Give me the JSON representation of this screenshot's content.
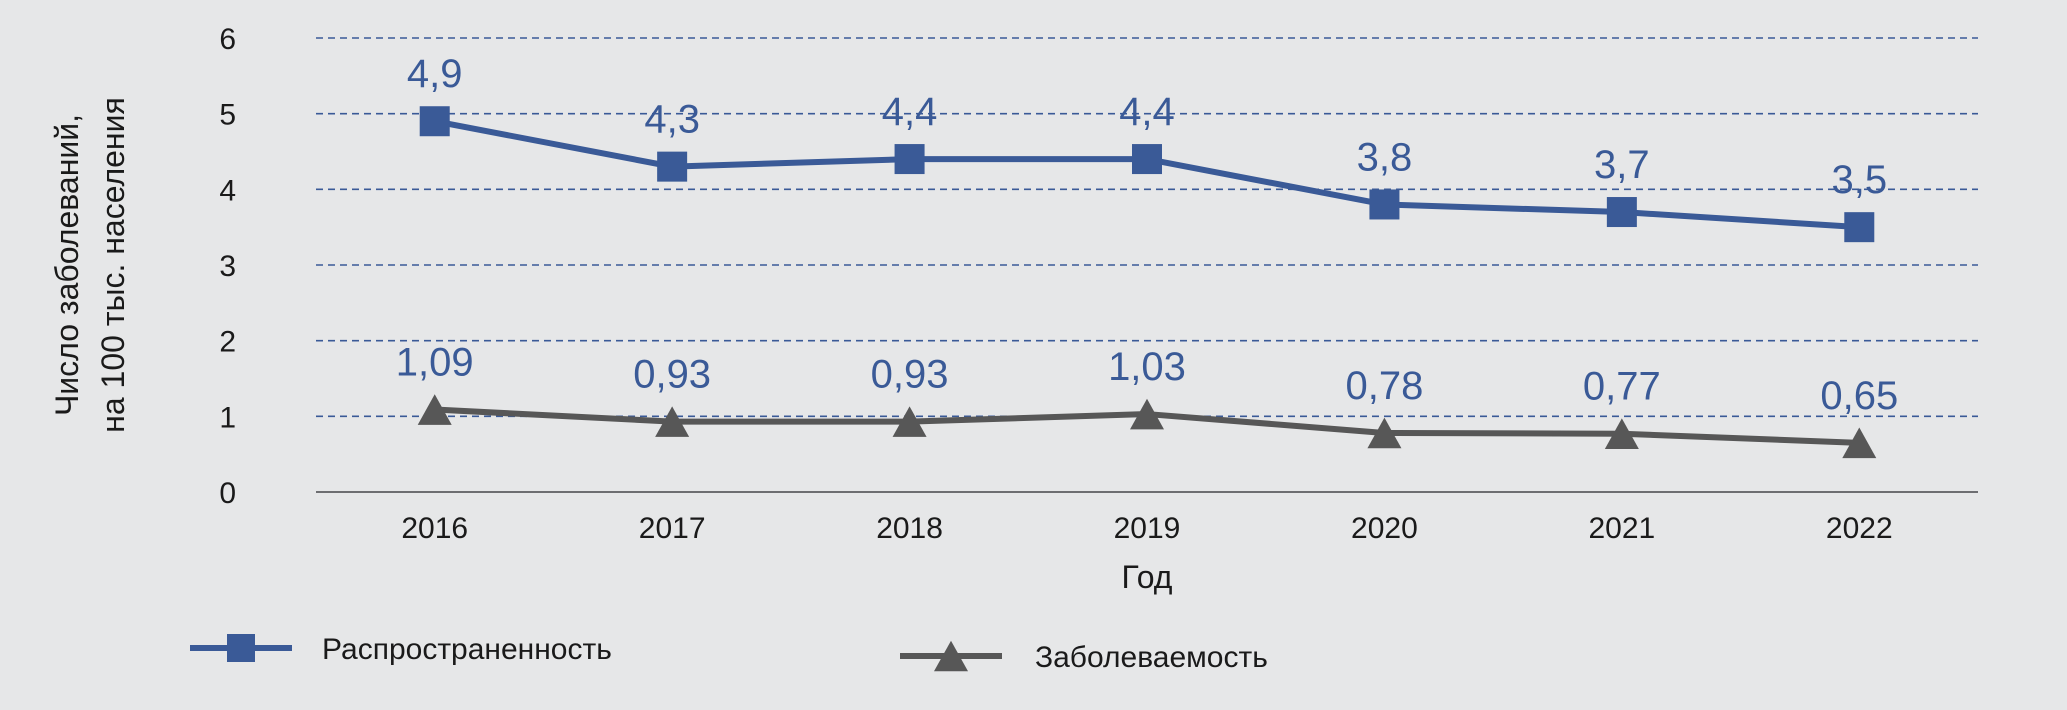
{
  "chart_data": {
    "type": "line",
    "title": "",
    "xlabel": "Год",
    "ylabel_lines": [
      "Число заболеваний,",
      "на 100 тыс. населения"
    ],
    "categories": [
      "2016",
      "2017",
      "2018",
      "2019",
      "2020",
      "2021",
      "2022"
    ],
    "ylim": [
      0,
      6
    ],
    "yticks": [
      "0",
      "1",
      "2",
      "3",
      "4",
      "5",
      "6"
    ],
    "grid": "horizontal dashed",
    "legend_position": "bottom",
    "series": [
      {
        "name": "Распространенность",
        "marker": "square",
        "color": "#3a5a97",
        "values": [
          4.9,
          4.3,
          4.4,
          4.4,
          3.8,
          3.7,
          3.5
        ],
        "labels": [
          "4,9",
          "4,3",
          "4,4",
          "4,4",
          "3,8",
          "3,7",
          "3,5"
        ]
      },
      {
        "name": "Заболеваемость",
        "marker": "triangle",
        "color": "#575757",
        "values": [
          1.09,
          0.93,
          0.93,
          1.03,
          0.78,
          0.77,
          0.65
        ],
        "labels": [
          "1,09",
          "0,93",
          "0,93",
          "1,03",
          "0,78",
          "0,77",
          "0,65"
        ]
      }
    ],
    "colors": {
      "grid": "#3a5a97",
      "axis": "#6d6e71",
      "label": "#3a5a97"
    }
  }
}
